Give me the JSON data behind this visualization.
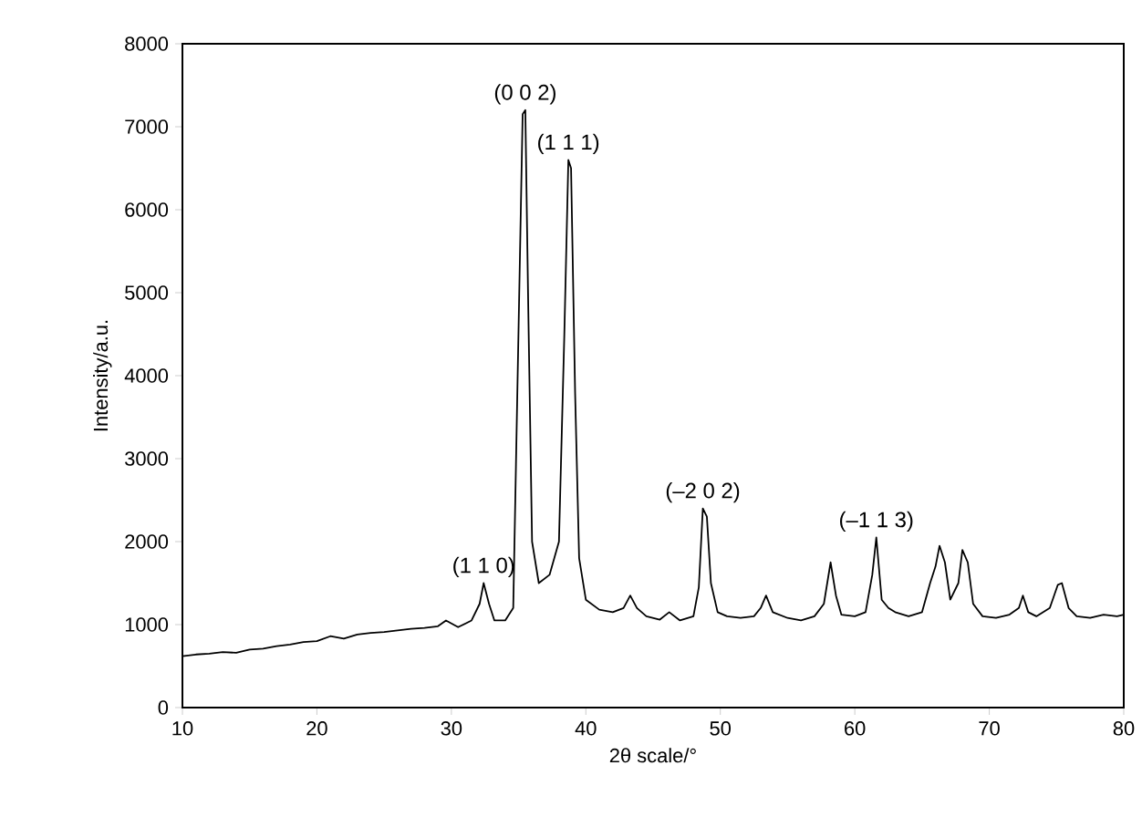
{
  "chart_data": {
    "type": "line",
    "xlabel": "2θ scale/°",
    "ylabel": "Intensity/a.u.",
    "xlim": [
      10,
      80
    ],
    "xticks": [
      10,
      20,
      30,
      40,
      50,
      60,
      70,
      80
    ],
    "ylim": [
      0,
      8000
    ],
    "yticks": [
      0,
      1000,
      2000,
      3000,
      4000,
      5000,
      6000,
      7000,
      8000
    ],
    "grid": false,
    "marker": "none",
    "line_style": "solid",
    "series": [
      {
        "color": "#000000",
        "x": [
          10,
          11,
          12,
          13,
          14,
          15,
          16,
          17,
          18,
          19,
          20,
          21,
          22,
          23,
          24,
          25,
          26,
          27,
          28,
          29,
          29.6,
          30.5,
          31.5,
          32.1,
          32.4,
          32.8,
          33.2,
          34,
          34.6,
          35.0,
          35.3,
          35.5,
          35.7,
          36.0,
          36.5,
          37.3,
          38.0,
          38.4,
          38.7,
          38.9,
          39.2,
          39.5,
          40,
          41,
          42,
          42.8,
          43.3,
          43.8,
          44.5,
          45.5,
          46.2,
          47,
          48,
          48.4,
          48.7,
          49.0,
          49.3,
          49.8,
          50.5,
          51.5,
          52.5,
          53.0,
          53.4,
          53.9,
          55,
          56,
          57,
          57.7,
          58.2,
          58.6,
          59,
          60,
          60.8,
          61.3,
          61.6,
          62,
          62.5,
          63,
          64,
          65,
          65.6,
          66.0,
          66.3,
          66.7,
          67.1,
          67.7,
          68.0,
          68.4,
          68.8,
          69.5,
          70.5,
          71.5,
          72.2,
          72.5,
          72.9,
          73.5,
          74.5,
          75.1,
          75.4,
          75.9,
          76.5,
          77.5,
          78.5,
          79.5,
          80
        ],
        "values": [
          620,
          640,
          650,
          670,
          660,
          700,
          710,
          740,
          760,
          790,
          800,
          860,
          830,
          880,
          900,
          910,
          930,
          950,
          960,
          980,
          1050,
          970,
          1050,
          1250,
          1500,
          1250,
          1050,
          1050,
          1200,
          4600,
          7150,
          7200,
          5000,
          2000,
          1500,
          1600,
          2000,
          4500,
          6600,
          6500,
          3800,
          1800,
          1300,
          1180,
          1150,
          1200,
          1350,
          1200,
          1100,
          1060,
          1150,
          1050,
          1100,
          1450,
          2400,
          2300,
          1500,
          1150,
          1100,
          1080,
          1100,
          1200,
          1350,
          1150,
          1080,
          1050,
          1100,
          1250,
          1750,
          1350,
          1120,
          1100,
          1150,
          1600,
          2050,
          1300,
          1200,
          1150,
          1100,
          1150,
          1500,
          1700,
          1950,
          1750,
          1300,
          1500,
          1900,
          1750,
          1250,
          1100,
          1080,
          1120,
          1200,
          1350,
          1150,
          1100,
          1200,
          1480,
          1500,
          1200,
          1100,
          1080,
          1120,
          1100,
          1120
        ]
      }
    ],
    "annotations": [
      {
        "text": "(1 1 0)",
        "x": 32.4,
        "y": 1500
      },
      {
        "text": "(0 0 2)",
        "x": 35.5,
        "y": 7200
      },
      {
        "text": "(1 1 1)",
        "x": 38.7,
        "y": 6600
      },
      {
        "text": "(–2 0 2)",
        "x": 48.7,
        "y": 2400
      },
      {
        "text": "(–1 1 3)",
        "x": 61.6,
        "y": 2050
      }
    ]
  }
}
